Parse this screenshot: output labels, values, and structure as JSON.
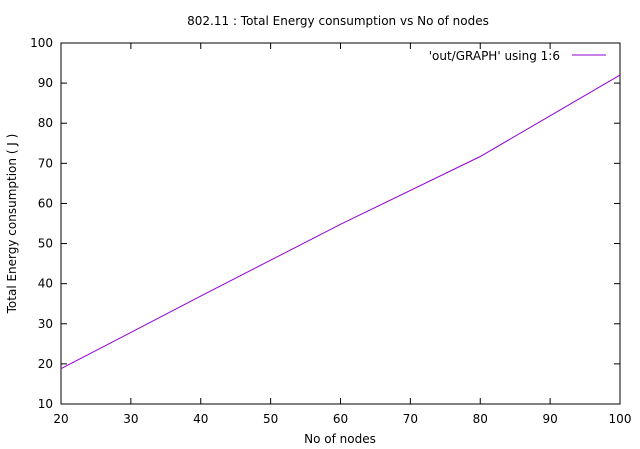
{
  "chart_data": {
    "type": "line",
    "title": "802.11 : Total Energy consumption vs No of nodes",
    "xlabel": "No of nodes",
    "ylabel": "Total Energy consumption ( J )",
    "xlim": [
      20,
      100
    ],
    "ylim": [
      10,
      100
    ],
    "xticks": [
      20,
      30,
      40,
      50,
      60,
      70,
      80,
      90,
      100
    ],
    "yticks": [
      10,
      20,
      30,
      40,
      50,
      60,
      70,
      80,
      90,
      100
    ],
    "legend_position": "top-right",
    "grid": false,
    "series": [
      {
        "name": "'out/GRAPH' using 1:6",
        "color": "#9400d3",
        "x": [
          20,
          40,
          60,
          80,
          100
        ],
        "y": [
          18.8,
          36.9,
          54.8,
          71.7,
          92.0
        ]
      }
    ]
  }
}
